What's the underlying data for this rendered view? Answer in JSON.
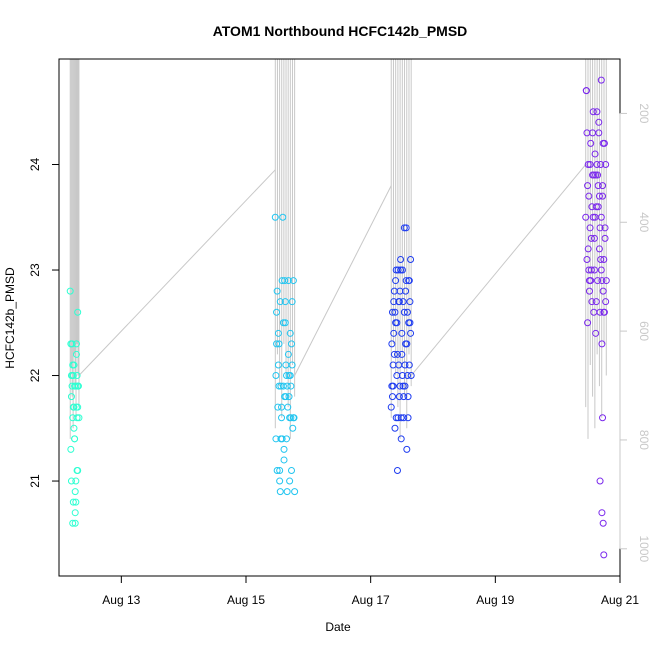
{
  "chart_data": {
    "type": "scatter",
    "title": "ATOM1 Northbound HCFC142b_PMSD",
    "xlabel": "Date",
    "ylabel": "HCFC142b_PMSD",
    "x_ticks": [
      "Aug 13",
      "Aug 15",
      "Aug 17",
      "Aug 19",
      "Aug 21"
    ],
    "x_tick_days": [
      13,
      15,
      17,
      19,
      21
    ],
    "xlim_days": [
      12.0,
      21.0
    ],
    "y_ticks": [
      21,
      22,
      23,
      24
    ],
    "ylim": [
      20.1,
      25.0
    ],
    "right_axis": {
      "ticks": [
        200,
        400,
        600,
        800,
        1000
      ],
      "range": [
        100,
        1050
      ],
      "inverted": true,
      "line_color": "#c8c8c8"
    },
    "grid": false,
    "series": [
      {
        "color": "#2effd2",
        "x": [
          12.18,
          12.19,
          12.2,
          12.21,
          12.22,
          12.23,
          12.24,
          12.25,
          12.26,
          12.27,
          12.28,
          12.29,
          12.3,
          12.3,
          12.31,
          12.32,
          12.19,
          12.2,
          12.22,
          12.24,
          12.25,
          12.27,
          12.28,
          12.3,
          12.21,
          12.23,
          12.26,
          12.29,
          12.22,
          12.25,
          12.28,
          12.31,
          12.2,
          12.26,
          12.24,
          12.29,
          12.21,
          12.27,
          12.23,
          12.3
        ],
        "y": [
          22.8,
          22.3,
          22.0,
          21.9,
          21.6,
          21.7,
          22.1,
          21.4,
          20.9,
          21.0,
          22.3,
          22.0,
          21.1,
          22.6,
          21.9,
          21.6,
          21.3,
          21.8,
          22.1,
          21.5,
          21.4,
          20.8,
          21.7,
          21.9,
          22.3,
          22.0,
          20.7,
          21.6,
          20.6,
          21.9,
          22.2,
          21.9,
          21.0,
          20.6,
          21.7,
          21.1,
          22.0,
          21.9,
          20.8,
          21.7
        ]
      },
      {
        "color": "#22c5f0",
        "x": [
          15.47,
          15.48,
          15.49,
          15.5,
          15.51,
          15.52,
          15.53,
          15.54,
          15.55,
          15.56,
          15.57,
          15.58,
          15.59,
          15.6,
          15.61,
          15.62,
          15.63,
          15.64,
          15.65,
          15.66,
          15.67,
          15.68,
          15.69,
          15.7,
          15.71,
          15.72,
          15.73,
          15.74,
          15.75,
          15.76,
          15.77,
          15.78,
          15.48,
          15.5,
          15.52,
          15.54,
          15.56,
          15.58,
          15.6,
          15.62,
          15.64,
          15.66,
          15.68,
          15.7,
          15.72,
          15.74,
          15.76,
          15.49,
          15.53,
          15.57,
          15.61,
          15.65,
          15.69,
          15.73,
          15.55,
          15.63,
          15.71
        ],
        "y": [
          23.5,
          21.4,
          22.3,
          22.8,
          21.7,
          22.1,
          21.9,
          21.1,
          22.7,
          21.4,
          21.6,
          22.9,
          23.5,
          21.9,
          21.3,
          21.8,
          22.5,
          22.1,
          21.4,
          20.9,
          21.7,
          22.9,
          22.0,
          21.6,
          22.4,
          21.9,
          21.1,
          22.7,
          21.5,
          22.9,
          21.6,
          20.9,
          22.0,
          21.1,
          22.4,
          21.0,
          21.9,
          21.4,
          22.5,
          22.9,
          21.8,
          21.9,
          22.2,
          21.0,
          21.6,
          22.1,
          21.6,
          22.6,
          22.3,
          21.7,
          21.2,
          22.0,
          21.8,
          22.3,
          20.9,
          22.7,
          22.0
        ]
      },
      {
        "color": "#1e3cf0",
        "x": [
          17.33,
          17.34,
          17.35,
          17.36,
          17.37,
          17.38,
          17.39,
          17.4,
          17.41,
          17.42,
          17.43,
          17.44,
          17.45,
          17.46,
          17.47,
          17.48,
          17.49,
          17.5,
          17.51,
          17.52,
          17.53,
          17.54,
          17.55,
          17.56,
          17.57,
          17.58,
          17.59,
          17.6,
          17.61,
          17.62,
          17.63,
          17.64,
          17.65,
          17.34,
          17.36,
          17.38,
          17.4,
          17.42,
          17.44,
          17.46,
          17.48,
          17.5,
          17.52,
          17.54,
          17.56,
          17.58,
          17.6,
          17.62,
          17.64,
          17.35,
          17.39,
          17.43,
          17.47,
          17.51,
          17.55,
          17.59,
          17.63,
          17.37,
          17.45,
          17.53,
          17.61,
          17.41,
          17.49,
          17.57
        ],
        "y": [
          21.7,
          22.3,
          22.6,
          21.9,
          22.7,
          22.2,
          21.5,
          22.9,
          21.6,
          22.5,
          21.1,
          23.0,
          22.1,
          21.8,
          22.8,
          23.1,
          21.4,
          22.4,
          22.0,
          22.7,
          21.6,
          23.4,
          21.9,
          22.3,
          23.4,
          21.3,
          22.6,
          21.6,
          22.9,
          22.1,
          22.5,
          23.1,
          22.0,
          21.9,
          22.1,
          22.8,
          22.5,
          22.0,
          21.6,
          22.7,
          23.0,
          22.2,
          21.9,
          22.6,
          22.8,
          22.3,
          21.8,
          22.9,
          22.4,
          21.8,
          22.6,
          22.2,
          21.9,
          23.0,
          22.1,
          22.0,
          22.7,
          22.4,
          22.7,
          21.8,
          22.5,
          23.0,
          21.6,
          22.9
        ]
      },
      {
        "color": "#7a28ec",
        "x": [
          20.45,
          20.46,
          20.47,
          20.48,
          20.49,
          20.5,
          20.51,
          20.52,
          20.53,
          20.54,
          20.55,
          20.56,
          20.57,
          20.58,
          20.59,
          20.6,
          20.61,
          20.62,
          20.63,
          20.64,
          20.65,
          20.66,
          20.67,
          20.68,
          20.69,
          20.7,
          20.71,
          20.72,
          20.73,
          20.74,
          20.75,
          20.76,
          20.77,
          20.78,
          20.46,
          20.48,
          20.5,
          20.52,
          20.54,
          20.56,
          20.58,
          20.6,
          20.62,
          20.64,
          20.66,
          20.68,
          20.7,
          20.72,
          20.74,
          20.76,
          20.47,
          20.51,
          20.55,
          20.59,
          20.63,
          20.67,
          20.71,
          20.75,
          20.49,
          20.53,
          20.57,
          20.61,
          20.65,
          20.69,
          20.73,
          20.77,
          20.7,
          20.72,
          20.74,
          20.68,
          20.71,
          20.73
        ],
        "y": [
          23.5,
          24.7,
          23.1,
          22.5,
          24.0,
          23.7,
          22.8,
          23.4,
          24.2,
          23.0,
          22.7,
          23.9,
          24.5,
          22.6,
          23.3,
          24.1,
          22.4,
          23.6,
          24.5,
          22.9,
          23.8,
          24.3,
          23.2,
          22.6,
          24.0,
          23.5,
          22.3,
          23.8,
          24.2,
          23.1,
          22.6,
          23.4,
          24.0,
          22.9,
          24.7,
          23.8,
          23.0,
          24.0,
          23.3,
          24.3,
          23.9,
          23.5,
          22.7,
          23.9,
          24.4,
          23.4,
          23.0,
          23.7,
          22.6,
          23.3,
          24.3,
          22.9,
          23.6,
          23.0,
          24.0,
          23.7,
          22.9,
          24.2,
          23.2,
          22.9,
          23.5,
          23.9,
          23.6,
          23.1,
          22.8,
          22.7,
          24.8,
          21.6,
          20.3,
          21.0,
          20.7,
          20.6
        ]
      }
    ]
  }
}
